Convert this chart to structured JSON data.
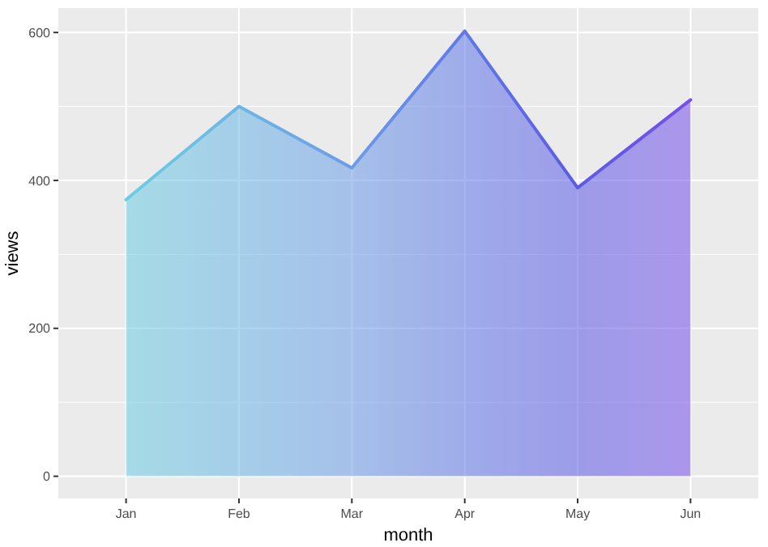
{
  "chart_data": {
    "type": "area",
    "xlabel": "month",
    "ylabel": "views",
    "categories": [
      "Jan",
      "Feb",
      "Mar",
      "Apr",
      "May",
      "Jun"
    ],
    "series": [
      {
        "values": [
          374,
          500,
          417,
          602,
          390,
          509
        ],
        "colors": [
          "#6ccde2",
          "#6cb6e6",
          "#6c9ce8",
          "#6078e8",
          "#5c5ae6",
          "#7650ea"
        ]
      }
    ],
    "ylim": [
      -30,
      633
    ],
    "yticks": [
      0,
      {
        "value": 100,
        "label": null
      },
      200,
      {
        "value": 300,
        "label": null
      },
      400,
      {
        "value": 500,
        "label": null
      },
      600
    ],
    "grid": true
  }
}
